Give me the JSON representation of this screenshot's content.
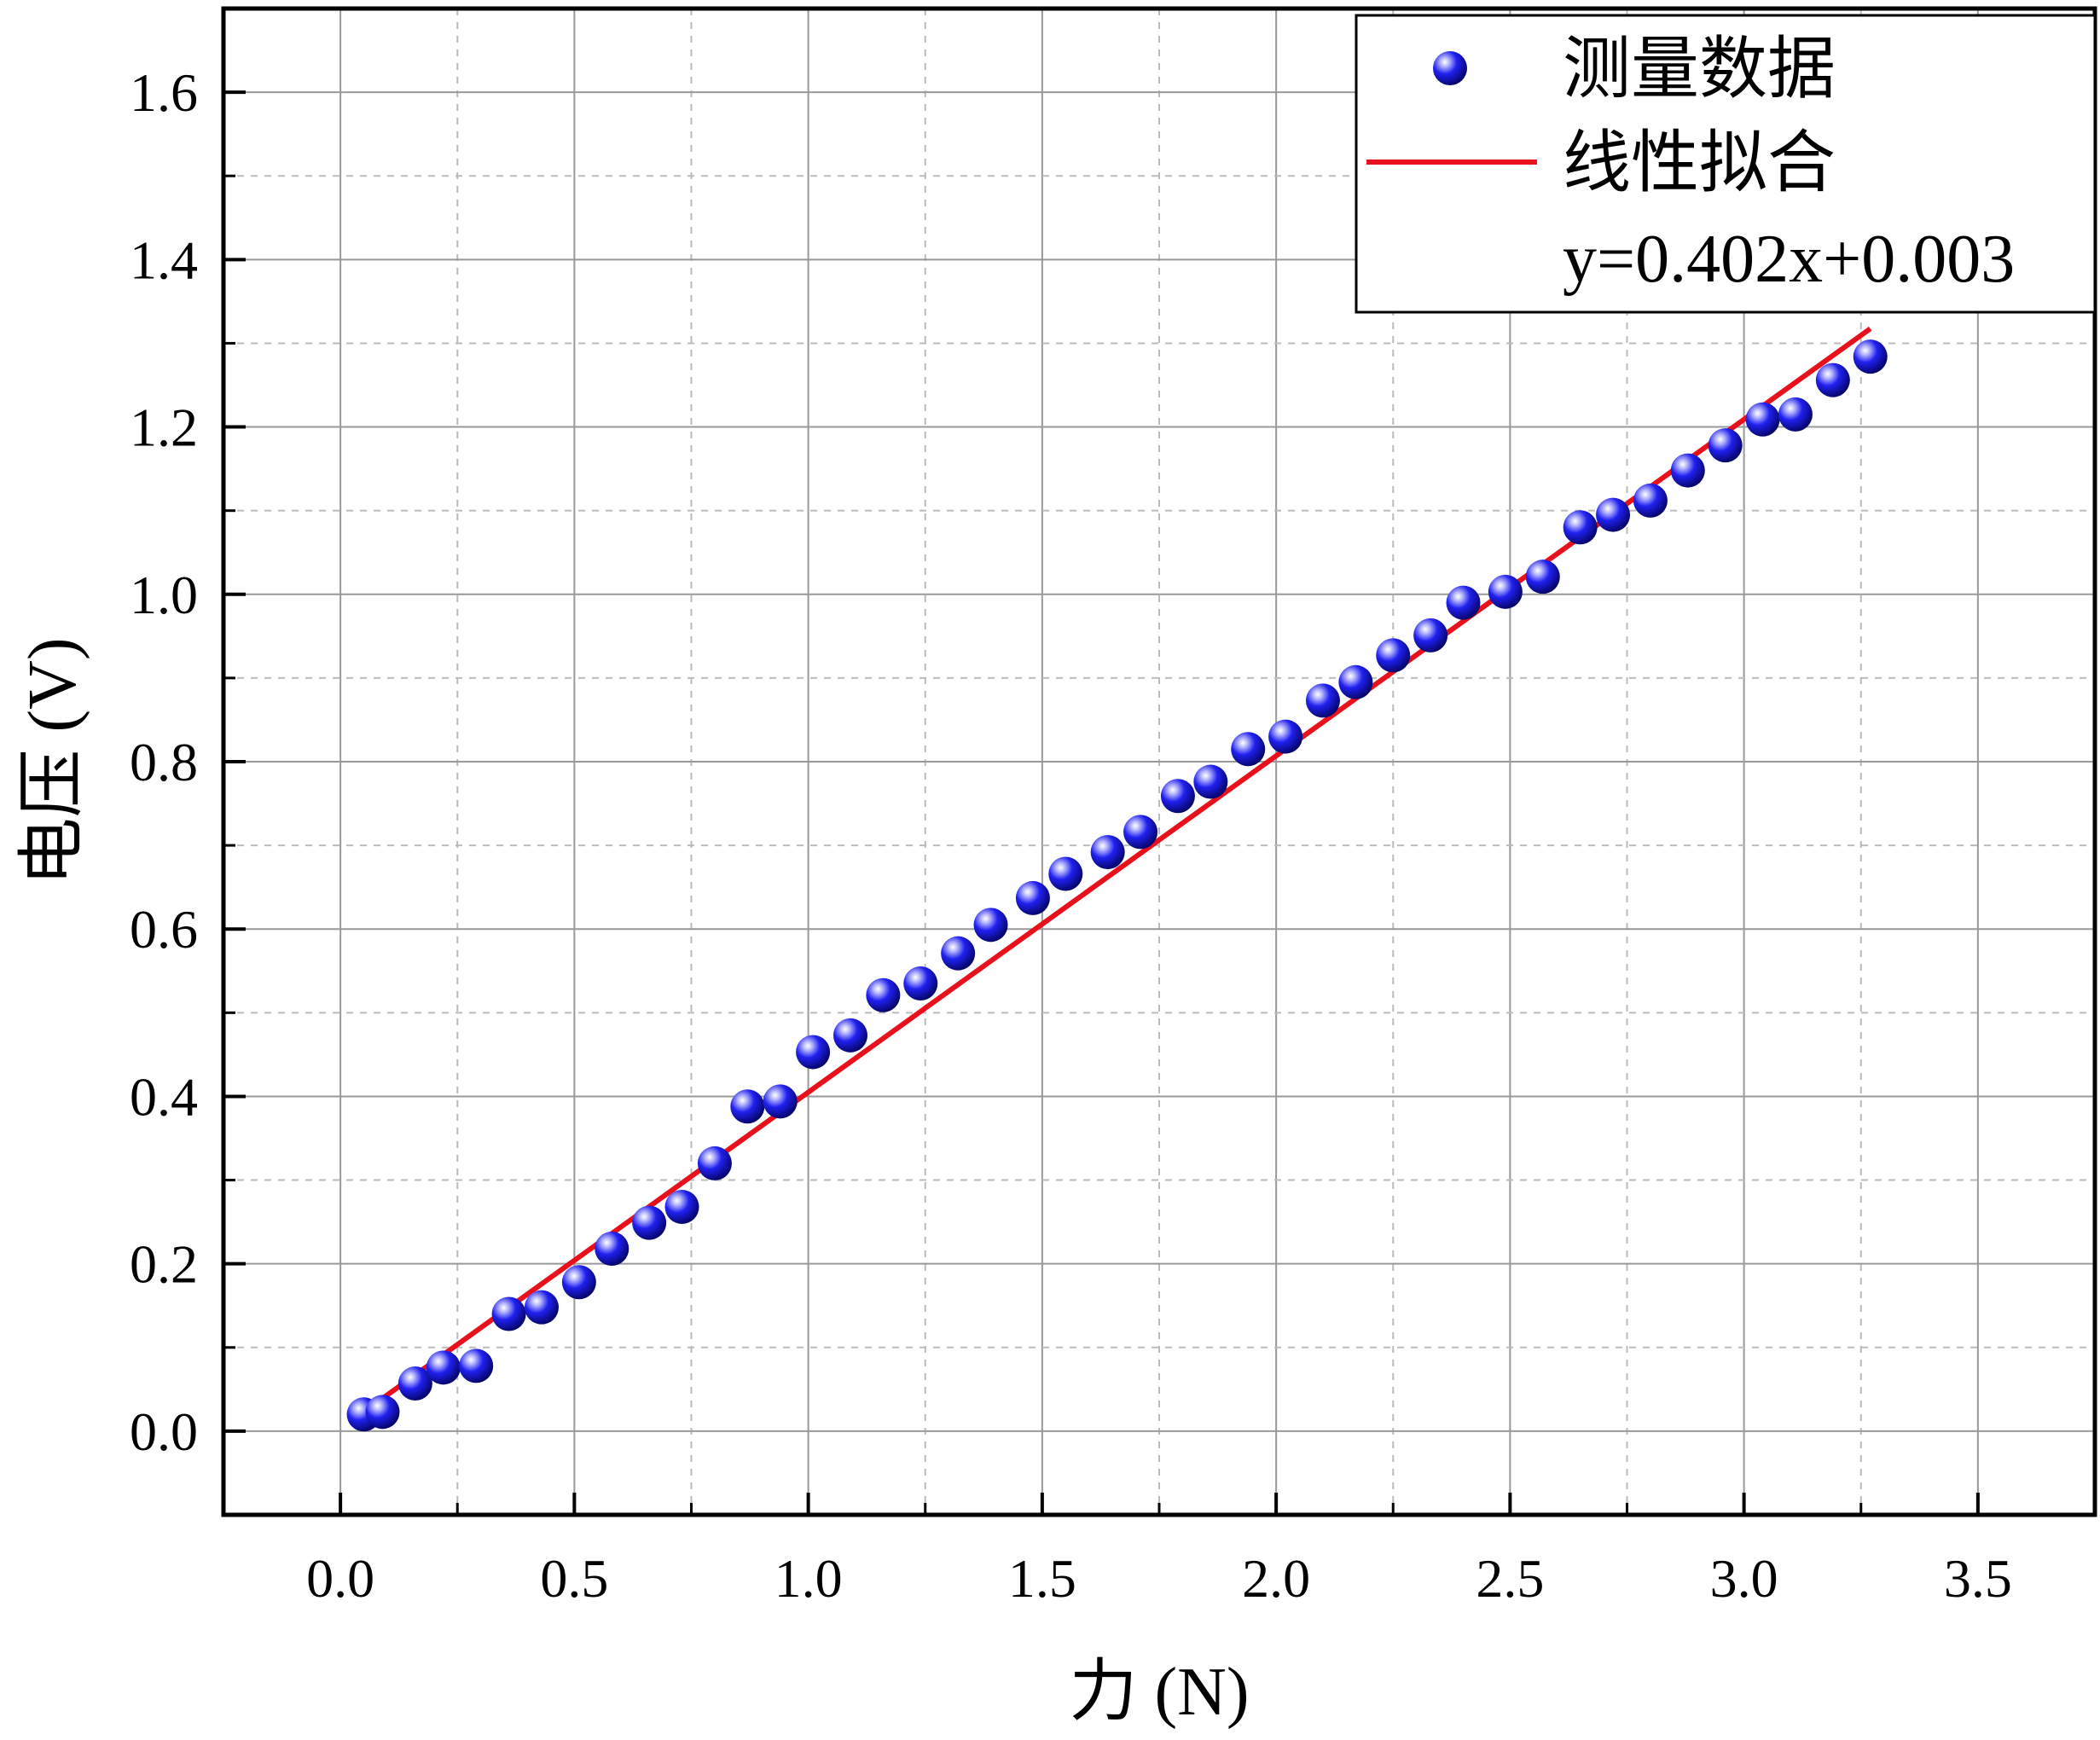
{
  "chart_data": {
    "type": "scatter",
    "xlabel": "力 (N)",
    "ylabel": "电压 (V)",
    "xlim": [
      -0.25,
      3.75
    ],
    "ylim": [
      -0.1,
      1.7
    ],
    "xticks": [
      "0.0",
      "0.5",
      "1.0",
      "1.5",
      "2.0",
      "2.5",
      "3.0",
      "3.5"
    ],
    "yticks": [
      "0.0",
      "0.2",
      "0.4",
      "0.6",
      "0.8",
      "1.0",
      "1.2",
      "1.4",
      "1.6"
    ],
    "grid": true,
    "legend_position": "top-right",
    "series": [
      {
        "name": "测量数据",
        "kind": "scatter",
        "color": "#1010e0",
        "x": [
          0.05,
          0.09,
          0.16,
          0.22,
          0.29,
          0.36,
          0.43,
          0.51,
          0.58,
          0.66,
          0.73,
          0.8,
          0.87,
          0.94,
          1.01,
          1.09,
          1.16,
          1.24,
          1.32,
          1.39,
          1.48,
          1.55,
          1.64,
          1.71,
          1.79,
          1.86,
          1.94,
          2.02,
          2.1,
          2.17,
          2.25,
          2.33,
          2.4,
          2.49,
          2.57,
          2.65,
          2.72,
          2.8,
          2.88,
          2.96,
          3.04,
          3.11,
          3.19,
          3.27
        ],
        "y": [
          0.02,
          0.023,
          0.057,
          0.076,
          0.078,
          0.14,
          0.148,
          0.178,
          0.218,
          0.249,
          0.268,
          0.32,
          0.388,
          0.394,
          0.453,
          0.473,
          0.521,
          0.535,
          0.571,
          0.605,
          0.637,
          0.666,
          0.692,
          0.716,
          0.759,
          0.776,
          0.815,
          0.83,
          0.873,
          0.895,
          0.927,
          0.951,
          0.99,
          1.003,
          1.021,
          1.08,
          1.095,
          1.112,
          1.148,
          1.178,
          1.209,
          1.215,
          1.256,
          1.284
        ]
      },
      {
        "name": "线性拟合",
        "kind": "line",
        "color": "#e8101a",
        "x": [
          0.05,
          3.27
        ],
        "y": [
          0.0231,
          1.3175
        ]
      }
    ],
    "annotation": "y=0.402x+0.003"
  }
}
